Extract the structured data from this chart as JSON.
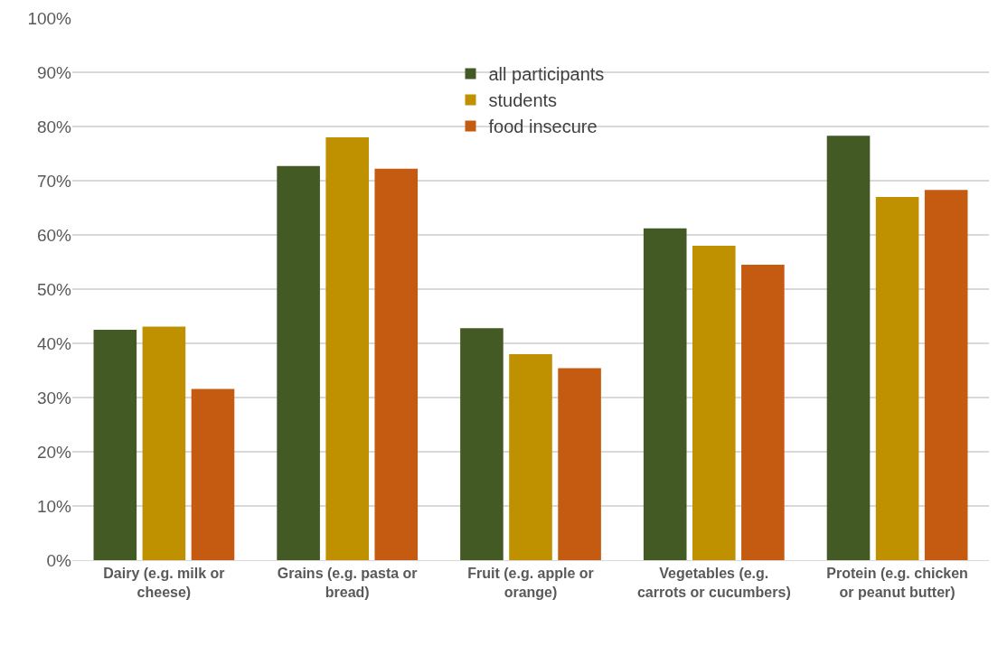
{
  "chart_data": {
    "type": "bar",
    "categories": [
      "Dairy (e.g. milk or cheese)",
      "Grains (e.g. pasta or bread)",
      "Fruit (e.g. apple or orange)",
      "Vegetables (e.g. carrots or cucumbers)",
      "Protein (e.g. chicken or peanut butter)"
    ],
    "series": [
      {
        "name": "all participants",
        "color": "#435a24",
        "values": [
          42.5,
          72.7,
          42.8,
          61.2,
          78.3
        ]
      },
      {
        "name": "students",
        "color": "#bf9000",
        "values": [
          43.1,
          78.0,
          38.0,
          58.0,
          67.0
        ]
      },
      {
        "name": "food insecure",
        "color": "#c55a11",
        "values": [
          31.6,
          72.2,
          35.4,
          54.5,
          68.3
        ]
      }
    ],
    "ylim": [
      0,
      100
    ],
    "yticks": [
      {
        "value": 0,
        "label": "0%"
      },
      {
        "value": 10,
        "label": "10%"
      },
      {
        "value": 20,
        "label": "20%"
      },
      {
        "value": 30,
        "label": "30%"
      },
      {
        "value": 40,
        "label": "40%"
      },
      {
        "value": 50,
        "label": "50%"
      },
      {
        "value": 60,
        "label": "60%"
      },
      {
        "value": 70,
        "label": "70%"
      },
      {
        "value": 80,
        "label": "80%"
      },
      {
        "value": 90,
        "label": "90%"
      },
      {
        "value": 100,
        "label": "100%"
      }
    ],
    "grid": "y",
    "legend": "top"
  }
}
